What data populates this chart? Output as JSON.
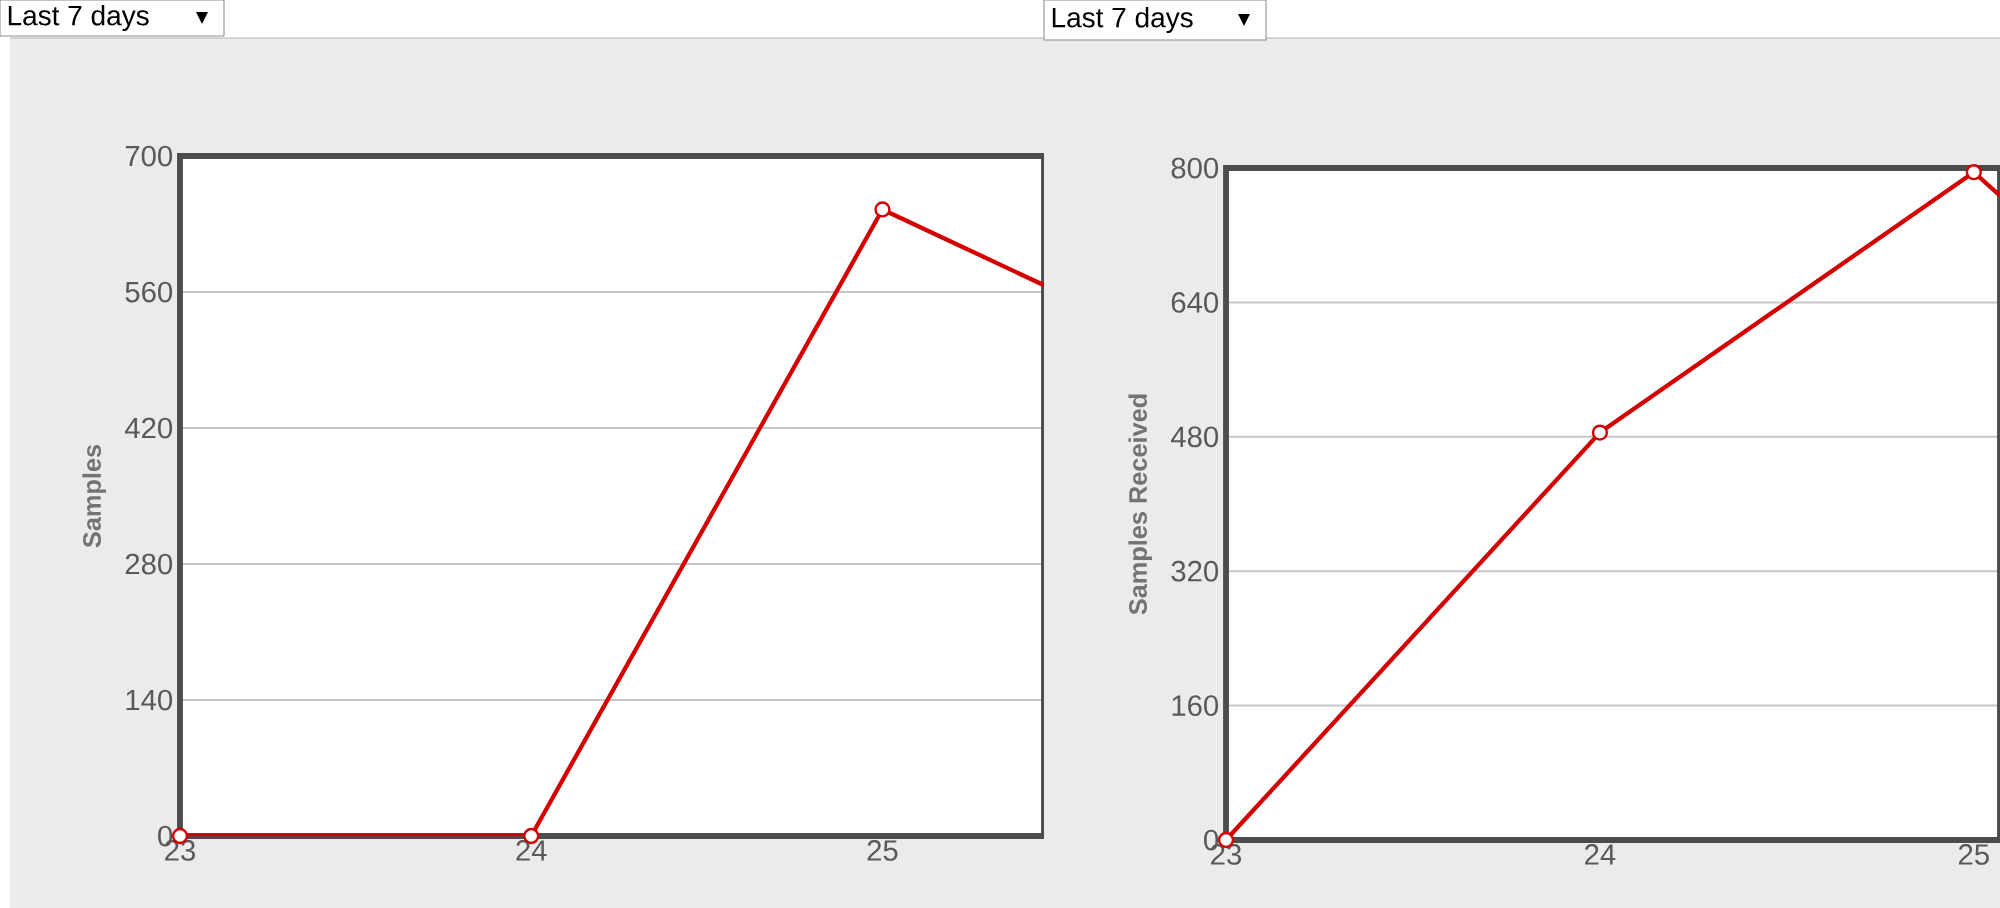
{
  "chart_data": [
    {
      "type": "line",
      "ylabel": "Samples",
      "annotations": [
        "Last 7 days"
      ],
      "xlim": [
        23,
        25.46
      ],
      "xticks": [
        23,
        24,
        25
      ],
      "ylim": [
        0,
        700
      ],
      "yticks": [
        0,
        140,
        280,
        420,
        560,
        700
      ],
      "grid": "y",
      "marker": "circle",
      "line_style": "solid",
      "series": [
        {
          "color": "#d40000",
          "x": [
            23,
            24,
            25
          ],
          "values": [
            0,
            0,
            645
          ]
        },
        {
          "color": "#d40000",
          "x": [
            25,
            25.46
          ],
          "values": [
            645,
            567
          ],
          "marker": "none"
        }
      ]
    },
    {
      "type": "line",
      "ylabel": "Samples Received",
      "annotations": [
        "Last 7 days"
      ],
      "xlim": [
        23,
        25.07
      ],
      "xticks": [
        23,
        24,
        25
      ],
      "ylim": [
        0,
        800
      ],
      "yticks": [
        0,
        160,
        320,
        480,
        640,
        800
      ],
      "grid": "y",
      "marker": "circle",
      "line_style": "solid",
      "series": [
        {
          "color": "#d40000",
          "x": [
            23,
            24,
            25
          ],
          "values": [
            0,
            485,
            795
          ]
        },
        {
          "color": "#d40000",
          "x": [
            25,
            25.07
          ],
          "values": [
            795,
            767
          ],
          "marker": "none"
        }
      ]
    }
  ]
}
